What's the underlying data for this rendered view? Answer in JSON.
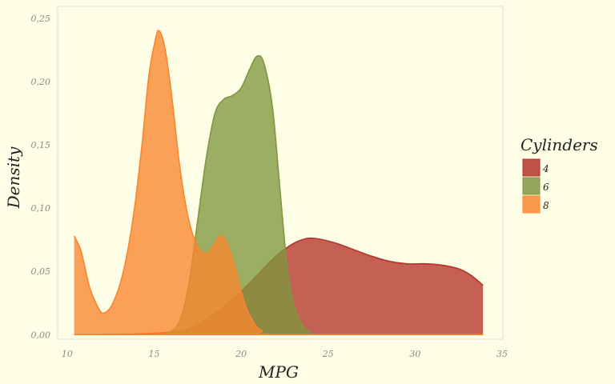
{
  "chart_data": {
    "type": "area",
    "title": "",
    "xlabel": "MPG",
    "ylabel": "Density",
    "xlim": [
      9.5,
      35
    ],
    "ylim": [
      -0.003,
      0.25
    ],
    "x_ticks": [
      10,
      15,
      20,
      25,
      30,
      35
    ],
    "y_ticks": [
      0.0,
      0.05,
      0.1,
      0.15,
      0.2,
      0.25
    ],
    "x_tick_labels": [
      "10",
      "15",
      "20",
      "25",
      "30",
      "35"
    ],
    "y_tick_labels": [
      "0,00",
      "0,05",
      "0,10",
      "0,15",
      "0,20",
      "0,25"
    ],
    "grid": false,
    "legend": {
      "title": "Cylinders",
      "position": "right"
    },
    "series": [
      {
        "name": "4",
        "color": "#b5332a",
        "points": [
          [
            10.4,
            0
          ],
          [
            14,
            0.0005
          ],
          [
            16,
            0.002
          ],
          [
            17,
            0.005
          ],
          [
            18,
            0.012
          ],
          [
            19,
            0.022
          ],
          [
            20,
            0.034
          ],
          [
            21,
            0.048
          ],
          [
            22,
            0.062
          ],
          [
            23,
            0.072
          ],
          [
            23.8,
            0.076
          ],
          [
            24.5,
            0.0755
          ],
          [
            25.5,
            0.072
          ],
          [
            26.5,
            0.067
          ],
          [
            27.5,
            0.062
          ],
          [
            28.5,
            0.058
          ],
          [
            29.5,
            0.056
          ],
          [
            30.5,
            0.056
          ],
          [
            31.5,
            0.055
          ],
          [
            32.5,
            0.052
          ],
          [
            33.2,
            0.047
          ],
          [
            33.9,
            0.039
          ]
        ]
      },
      {
        "name": "6",
        "color": "#80963f",
        "points": [
          [
            10.4,
            0
          ],
          [
            15,
            0
          ],
          [
            16,
            0.003
          ],
          [
            16.5,
            0.012
          ],
          [
            17,
            0.04
          ],
          [
            17.5,
            0.09
          ],
          [
            18,
            0.14
          ],
          [
            18.5,
            0.175
          ],
          [
            19,
            0.186
          ],
          [
            19.5,
            0.189
          ],
          [
            20,
            0.195
          ],
          [
            20.5,
            0.21
          ],
          [
            20.9,
            0.22
          ],
          [
            21.3,
            0.215
          ],
          [
            21.8,
            0.18
          ],
          [
            22.2,
            0.12
          ],
          [
            22.6,
            0.06
          ],
          [
            23,
            0.025
          ],
          [
            23.5,
            0.008
          ],
          [
            24,
            0.002
          ],
          [
            25,
            0
          ],
          [
            33.9,
            0
          ]
        ]
      },
      {
        "name": "8",
        "color": "#f9862e",
        "points": [
          [
            10.4,
            0.078
          ],
          [
            10.8,
            0.066
          ],
          [
            11.3,
            0.037
          ],
          [
            11.8,
            0.021
          ],
          [
            12.1,
            0.017
          ],
          [
            12.6,
            0.024
          ],
          [
            13.2,
            0.048
          ],
          [
            13.8,
            0.093
          ],
          [
            14.3,
            0.15
          ],
          [
            14.7,
            0.205
          ],
          [
            15.1,
            0.235
          ],
          [
            15.3,
            0.24
          ],
          [
            15.6,
            0.228
          ],
          [
            16,
            0.19
          ],
          [
            16.5,
            0.13
          ],
          [
            17,
            0.09
          ],
          [
            17.5,
            0.07
          ],
          [
            18,
            0.064
          ],
          [
            18.4,
            0.07
          ],
          [
            18.8,
            0.078
          ],
          [
            19.2,
            0.072
          ],
          [
            19.7,
            0.05
          ],
          [
            20.2,
            0.025
          ],
          [
            20.7,
            0.01
          ],
          [
            21.2,
            0.003
          ],
          [
            22,
            0
          ],
          [
            33.9,
            0
          ]
        ]
      }
    ]
  }
}
